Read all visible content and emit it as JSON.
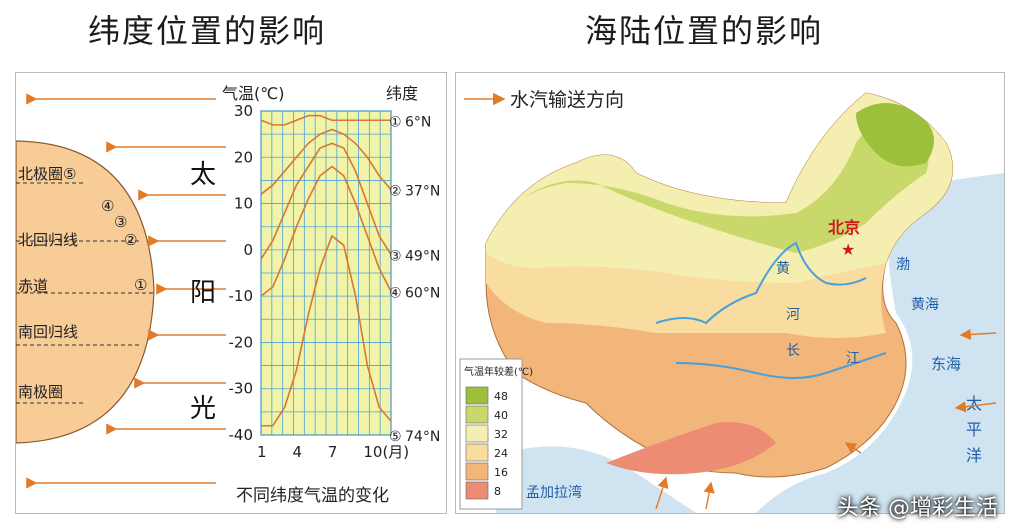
{
  "left_title": "纬度位置的影响",
  "right_title": "海陆位置的影响",
  "left_panel": {
    "circle_labels": [
      {
        "id": "arctic",
        "text": "北极圈⑤"
      },
      {
        "id": "tropic_n",
        "text": "北回归线"
      },
      {
        "id": "equator",
        "text": "赤道"
      },
      {
        "id": "tropic_s",
        "text": "南回归线"
      },
      {
        "id": "antarctic",
        "text": "南极圈"
      }
    ],
    "circle_numbers": [
      "④",
      "③",
      "②",
      "①"
    ],
    "sun_label": [
      "太",
      "阳",
      "光"
    ],
    "y_axis_title": "气温(℃)",
    "lat_header": "纬度",
    "y_ticks": [
      "30",
      "20",
      "10",
      "0",
      "-10",
      "-20",
      "-30",
      "-40"
    ],
    "x_ticks": [
      "1",
      "4",
      "7",
      "10(月)"
    ],
    "caption": "不同纬度气温的变化",
    "lat_labels": [
      {
        "num": "①",
        "lat": "6°N"
      },
      {
        "num": "②",
        "lat": "37°N"
      },
      {
        "num": "③",
        "lat": "49°N"
      },
      {
        "num": "④",
        "lat": "60°N"
      },
      {
        "num": "⑤",
        "lat": "74°N"
      }
    ]
  },
  "chart_data": {
    "type": "line",
    "x": [
      1,
      2,
      3,
      4,
      5,
      6,
      7,
      8,
      9,
      10,
      11,
      12
    ],
    "ylim": [
      -40,
      30
    ],
    "xlabel": "",
    "ylabel": "气温(℃)",
    "series": [
      {
        "name": "6°N",
        "values": [
          28,
          27,
          27,
          28,
          29,
          29,
          28,
          28,
          28,
          28,
          28,
          28
        ]
      },
      {
        "name": "37°N",
        "values": [
          12,
          14,
          17,
          20,
          23,
          25,
          26,
          25,
          23,
          20,
          16,
          13
        ]
      },
      {
        "name": "49°N",
        "values": [
          -2,
          2,
          8,
          14,
          18,
          22,
          23,
          22,
          17,
          10,
          3,
          -1
        ]
      },
      {
        "name": "60°N",
        "values": [
          -10,
          -8,
          -2,
          5,
          11,
          16,
          18,
          16,
          10,
          3,
          -4,
          -9
        ]
      },
      {
        "name": "74°N",
        "values": [
          -38,
          -38,
          -34,
          -26,
          -14,
          -4,
          3,
          1,
          -10,
          -25,
          -34,
          -37
        ]
      }
    ]
  },
  "right_panel": {
    "legend_arrow_label": "水汽输送方向",
    "beijing": "北京",
    "map_labels": {
      "huang": "黄",
      "he": "河",
      "chang": "长",
      "jiang": "江",
      "bohai": "渤",
      "huanghai": "黄海",
      "donghai": "东海",
      "taipingyang": [
        "太",
        "平",
        "洋"
      ],
      "bay_of_bengal": "孟加拉湾"
    },
    "range_legend": {
      "title": "气温年较差(℃)",
      "items": [
        {
          "label": "48",
          "color": "#9cbf3c"
        },
        {
          "label": "40",
          "color": "#c8d86a"
        },
        {
          "label": "32",
          "color": "#f4efb0"
        },
        {
          "label": "24",
          "color": "#f8dca0"
        },
        {
          "label": "16",
          "color": "#f2b57a"
        },
        {
          "label": "8",
          "color": "#ec8c72"
        }
      ]
    }
  },
  "watermark": "头条 @增彩生活"
}
